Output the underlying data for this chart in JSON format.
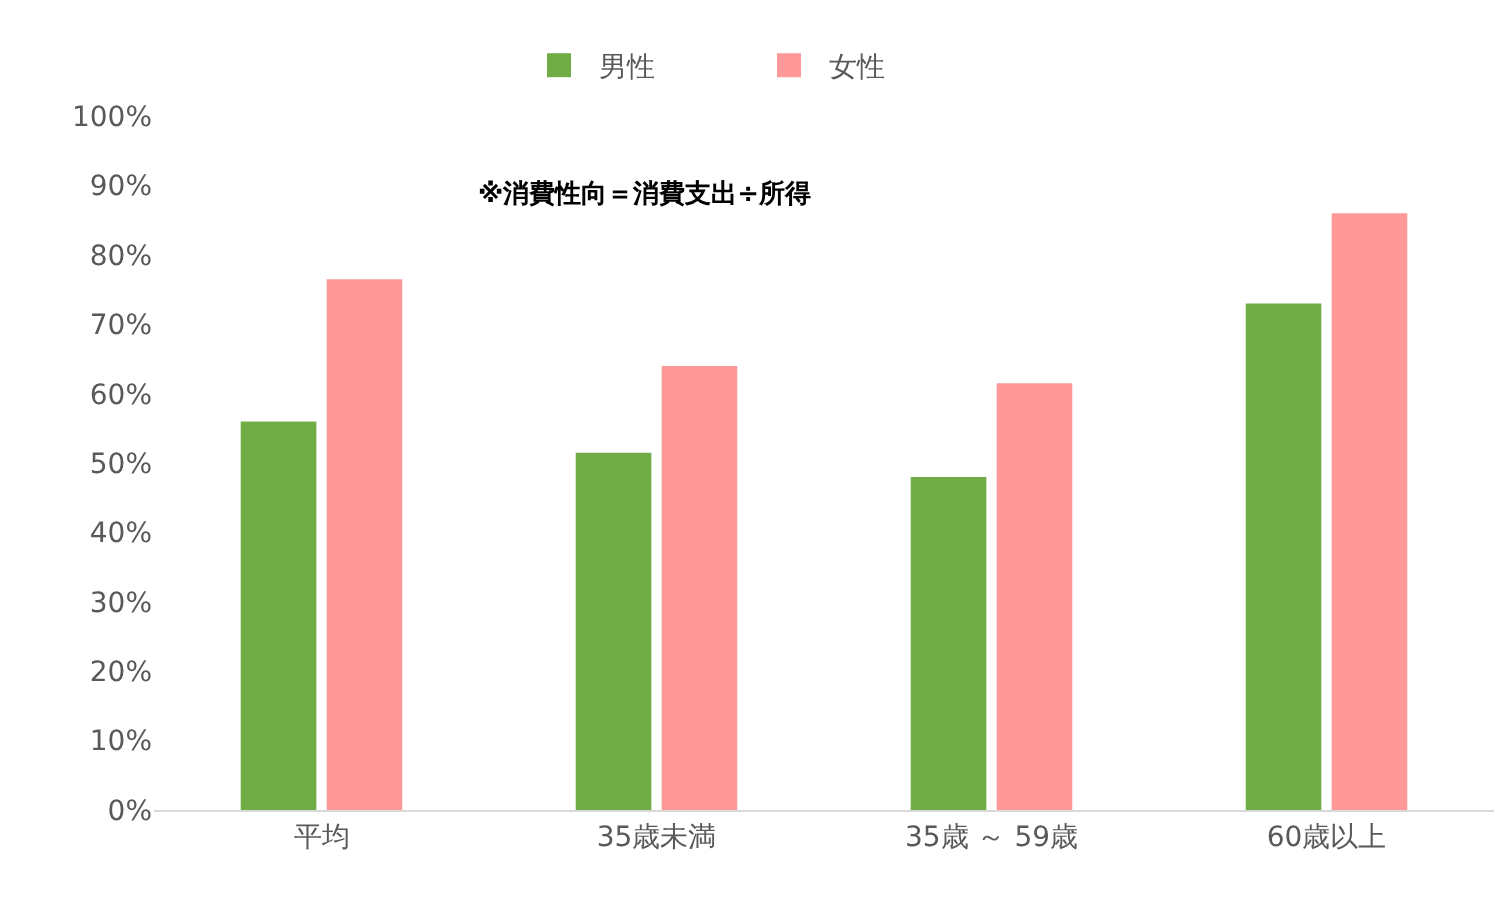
{
  "chart_data": {
    "type": "bar",
    "categories": [
      "平均",
      "35歳未満",
      "35歳 ～ 59歳",
      "60歳以上"
    ],
    "series": [
      {
        "name": "男性",
        "color": "#70ad47",
        "values": [
          56,
          51.5,
          48,
          73
        ]
      },
      {
        "name": "女性",
        "color": "#ff9999",
        "values": [
          76.5,
          64,
          61.5,
          86
        ]
      }
    ],
    "ylim": [
      0,
      100
    ],
    "yticks": [
      {
        "value": 0,
        "label": "0%"
      },
      {
        "value": 10,
        "label": "10%"
      },
      {
        "value": 20,
        "label": "20%"
      },
      {
        "value": 30,
        "label": "30%"
      },
      {
        "value": 40,
        "label": "40%"
      },
      {
        "value": 50,
        "label": "50%"
      },
      {
        "value": 60,
        "label": "60%"
      },
      {
        "value": 70,
        "label": "70%"
      },
      {
        "value": 80,
        "label": "80%"
      },
      {
        "value": 90,
        "label": "90%"
      },
      {
        "value": 100,
        "label": "100%"
      }
    ],
    "legend": "top",
    "grid": false,
    "annotations": [
      "※消費性向＝消費支出÷所得"
    ]
  }
}
